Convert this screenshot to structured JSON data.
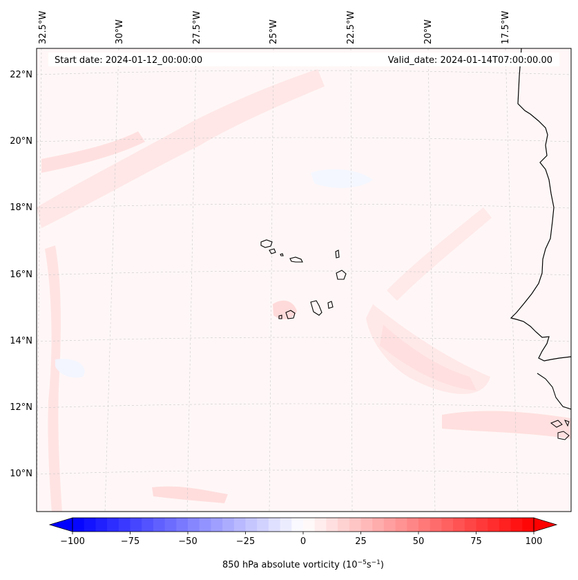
{
  "map": {
    "start_label": "Start date: 2024-01-12_00:00:00",
    "valid_label": "Valid_date: 2024-01-14T07:00:00.00",
    "lon_labels": [
      "32.5°W",
      "30°W",
      "27.5°W",
      "25°W",
      "22.5°W",
      "20°W",
      "17.5°W"
    ],
    "lat_labels": [
      "22°N",
      "20°N",
      "18°N",
      "16°N",
      "14°N",
      "12°N",
      "10°N"
    ],
    "field": "850 hPa absolute vorticity",
    "units_note": "10^-5 s^-1"
  },
  "colorbar": {
    "label": "850 hPa absolute vorticity (10",
    "label_exp1": "−5",
    "label_mid": "s",
    "label_exp2": "−1",
    "label_end": ")",
    "min": -100,
    "max": 100,
    "step": 5,
    "ticks": [
      "−100",
      "−75",
      "−50",
      "−25",
      "0",
      "25",
      "50",
      "75",
      "100"
    ],
    "color_low": "#0000ff",
    "color_mid": "#ffffff",
    "color_high": "#ff0000"
  },
  "colors": {
    "background_field": "#fff7f7",
    "coastline": "#000000",
    "gridline": "#c8c8c8"
  }
}
